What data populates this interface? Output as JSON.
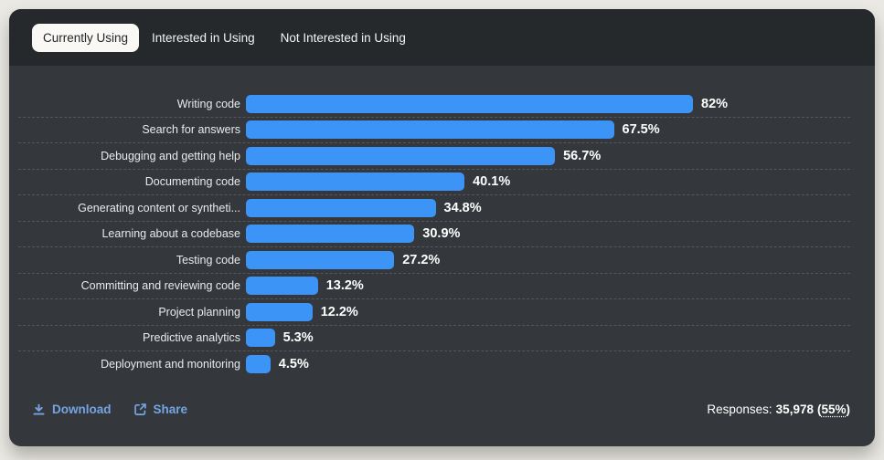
{
  "tabs": [
    {
      "label": "Currently Using",
      "active": true
    },
    {
      "label": "Interested in Using",
      "active": false
    },
    {
      "label": "Not Interested in Using",
      "active": false
    }
  ],
  "chart_data": {
    "type": "bar",
    "orientation": "horizontal",
    "categories": [
      "Writing code",
      "Search for answers",
      "Debugging and getting help",
      "Documenting code",
      "Generating content or syntheti...",
      "Learning about a codebase",
      "Testing code",
      "Committing and reviewing code",
      "Project planning",
      "Predictive analytics",
      "Deployment and monitoring"
    ],
    "values": [
      82,
      67.5,
      56.7,
      40.1,
      34.8,
      30.9,
      27.2,
      13.2,
      12.2,
      5.3,
      4.5
    ],
    "value_labels": [
      "82%",
      "67.5%",
      "56.7%",
      "40.1%",
      "34.8%",
      "30.9%",
      "27.2%",
      "13.2%",
      "12.2%",
      "5.3%",
      "4.5%"
    ],
    "xlim": [
      0,
      100
    ],
    "bar_color": "#3b94f6",
    "grid": "dashed-row-separators",
    "legend": "none",
    "title": ""
  },
  "footer": {
    "download_label": "Download",
    "share_label": "Share",
    "responses_label": "Responses:",
    "responses_value": "35,978",
    "paren_open": "(",
    "responses_percent": "55%",
    "paren_close": ")"
  },
  "colors": {
    "page_background": "#ebe9e4",
    "card_header_background": "#26292c",
    "card_body_background": "#34383c",
    "bar_blue": "#3b94f6",
    "link_blue": "#74a5e2",
    "active_tab_background": "#f9f8f5",
    "separator": "#54575c"
  }
}
